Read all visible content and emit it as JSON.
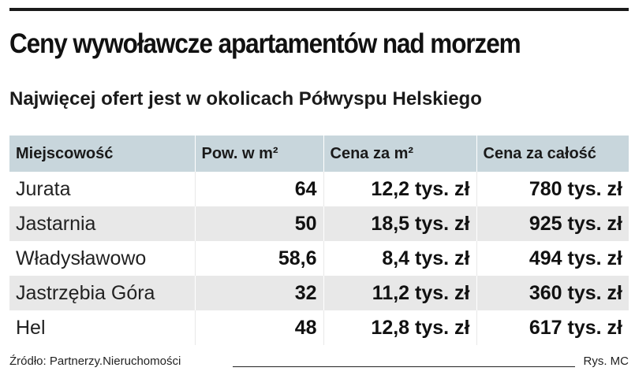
{
  "title": "Ceny wywoławcze apartamentów nad morzem",
  "subtitle": "Najwięcej ofert jest w okolicach Półwyspu Helskiego",
  "chart_data": {
    "type": "table",
    "title": "Ceny wywoławcze apartamentów nad morzem",
    "subtitle": "Najwięcej ofert jest w okolicach Półwyspu Helskiego",
    "columns": [
      "Miejscowość",
      "Pow. w m²",
      "Cena za m²",
      "Cena za całość"
    ],
    "rows": [
      [
        "Jurata",
        "64",
        "12,2 tys. zł",
        "780 tys. zł"
      ],
      [
        "Jastarnia",
        "50",
        "18,5 tys. zł",
        "925 tys. zł"
      ],
      [
        "Władysławowo",
        "58,6",
        "8,4 tys. zł",
        "494 tys. zł"
      ],
      [
        "Jastrzębia Góra",
        "32",
        "11,2 tys. zł",
        "360 tys. zł"
      ],
      [
        "Hel",
        "48",
        "12,8 tys. zł",
        "617 tys. zł"
      ]
    ]
  },
  "footer": {
    "source": "Źródło: Partnerzy.Nieruchomości",
    "credit": "Rys. MC"
  },
  "colors": {
    "header_bg": "#c8d6dc",
    "stripe_bg": "#e8e8e8",
    "text": "#111111",
    "rule": "#1a1a1a"
  }
}
